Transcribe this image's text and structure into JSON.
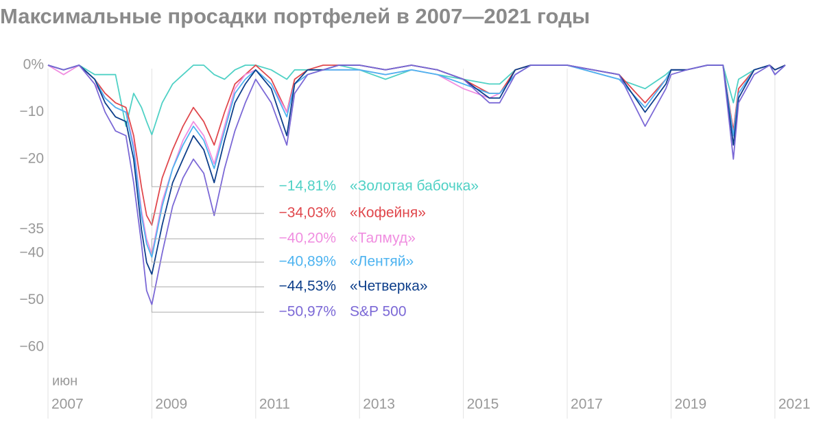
{
  "chart_data": {
    "type": "line",
    "title": "Максимальные просадки портфелей в 2007—2021 годы",
    "x_annotation": "июн",
    "xlim": [
      2007,
      2021.2
    ],
    "xticks": [
      2007,
      2009,
      2011,
      2013,
      2015,
      2017,
      2019,
      2021
    ],
    "ylim": [
      -65,
      0
    ],
    "yticks": [
      {
        "value": 0,
        "label": "0%"
      },
      {
        "value": -10,
        "label": "−10"
      },
      {
        "value": -20,
        "label": "−20"
      },
      {
        "value": -35,
        "label": "−35"
      },
      {
        "value": -40,
        "label": "−40"
      },
      {
        "value": -50,
        "label": "−50"
      },
      {
        "value": -60,
        "label": "−60"
      }
    ],
    "grid": true,
    "x": [
      2007.0,
      2007.3,
      2007.6,
      2007.9,
      2008.1,
      2008.3,
      2008.5,
      2008.65,
      2008.8,
      2008.9,
      2009.0,
      2009.2,
      2009.4,
      2009.6,
      2009.8,
      2010.0,
      2010.2,
      2010.4,
      2010.6,
      2010.8,
      2011.0,
      2011.3,
      2011.6,
      2011.75,
      2012.0,
      2012.3,
      2012.6,
      2013.0,
      2013.5,
      2014.0,
      2014.5,
      2015.0,
      2015.5,
      2015.7,
      2016.0,
      2016.3,
      2016.6,
      2017.0,
      2018.0,
      2018.5,
      2018.9,
      2019.0,
      2019.3,
      2019.7,
      2020.0,
      2020.2,
      2020.3,
      2020.6,
      2020.9,
      2021.0,
      2021.2
    ],
    "series": [
      {
        "name": "«Золотая бабочка»",
        "color": "#4fd1c5",
        "min_label": "−14,81%",
        "values": [
          0,
          -1,
          0,
          -2,
          -2,
          -2,
          -13,
          -6,
          -9,
          -12,
          -14.81,
          -8,
          -4,
          -2,
          0,
          0,
          -2,
          -3,
          -1,
          0,
          0,
          -1,
          -3,
          -1,
          -1,
          -1,
          0,
          -1,
          -3,
          -1,
          -2,
          -3,
          -4,
          -4,
          -1,
          0,
          0,
          0,
          -3,
          -5,
          -2,
          -1,
          -1,
          0,
          0,
          -8,
          -3,
          -1,
          0,
          -1,
          0
        ]
      },
      {
        "name": "«Кофейня»",
        "color": "#e0474c",
        "min_label": "−34,03%",
        "values": [
          0,
          -1,
          0,
          -3,
          -6,
          -8,
          -9,
          -15,
          -26,
          -32,
          -34.03,
          -24,
          -18,
          -13,
          -9,
          -12,
          -17,
          -10,
          -4,
          -2,
          0,
          -3,
          -10,
          -3,
          -1,
          0,
          0,
          0,
          -1,
          0,
          -1,
          -3,
          -6,
          -6,
          -1,
          0,
          0,
          0,
          -2,
          -8,
          -3,
          -1,
          -1,
          0,
          0,
          -14,
          -5,
          -1,
          0,
          -1,
          0
        ]
      },
      {
        "name": "«Талмуд»",
        "color": "#f08ee0",
        "min_label": "−40,20%",
        "values": [
          0,
          -2,
          0,
          -4,
          -7,
          -9,
          -10,
          -17,
          -31,
          -37,
          -40.2,
          -29,
          -22,
          -16,
          -12,
          -15,
          -21,
          -13,
          -5,
          -2,
          -1,
          -4,
          -10,
          -4,
          -2,
          -1,
          -1,
          -1,
          -2,
          -1,
          -2,
          -5,
          -7,
          -6,
          -2,
          0,
          0,
          0,
          -3,
          -9,
          -3,
          -1,
          -1,
          0,
          0,
          -15,
          -6,
          -1,
          0,
          -2,
          0
        ]
      },
      {
        "name": "«Лентяй»",
        "color": "#4db3f0",
        "min_label": "−40,89%",
        "values": [
          0,
          -1,
          0,
          -3,
          -7,
          -9,
          -10,
          -18,
          -32,
          -38,
          -40.89,
          -30,
          -22,
          -17,
          -13,
          -16,
          -22,
          -14,
          -6,
          -3,
          -1,
          -4,
          -11,
          -4,
          -2,
          -1,
          -1,
          -1,
          -2,
          -1,
          -2,
          -4,
          -6,
          -6,
          -2,
          0,
          0,
          0,
          -3,
          -9,
          -3,
          -1,
          -1,
          0,
          0,
          -15,
          -6,
          -1,
          0,
          -2,
          0
        ]
      },
      {
        "name": "«Четверка»",
        "color": "#0d3e8a",
        "min_label": "−44,53%",
        "values": [
          0,
          -1,
          0,
          -3,
          -8,
          -11,
          -12,
          -20,
          -35,
          -42,
          -44.53,
          -34,
          -25,
          -20,
          -15,
          -18,
          -25,
          -16,
          -8,
          -4,
          -1,
          -5,
          -15,
          -4,
          -1,
          -1,
          0,
          0,
          -1,
          0,
          -1,
          -3,
          -7,
          -7,
          -1,
          0,
          0,
          0,
          -2,
          -10,
          -4,
          -1,
          -1,
          0,
          0,
          -17,
          -7,
          -1,
          0,
          -1,
          0
        ]
      },
      {
        "name": "S&P 500",
        "color": "#7b68d6",
        "min_label": "−50,97%",
        "values": [
          0,
          -1,
          0,
          -4,
          -10,
          -14,
          -15,
          -25,
          -38,
          -48,
          -50.97,
          -40,
          -30,
          -24,
          -20,
          -23,
          -32,
          -22,
          -14,
          -8,
          -3,
          -8,
          -17,
          -6,
          -2,
          -1,
          0,
          0,
          -1,
          0,
          -1,
          -3,
          -8,
          -8,
          -2,
          0,
          0,
          0,
          -2,
          -13,
          -5,
          -2,
          -1,
          0,
          0,
          -20,
          -8,
          -2,
          0,
          -2,
          0
        ]
      }
    ]
  }
}
